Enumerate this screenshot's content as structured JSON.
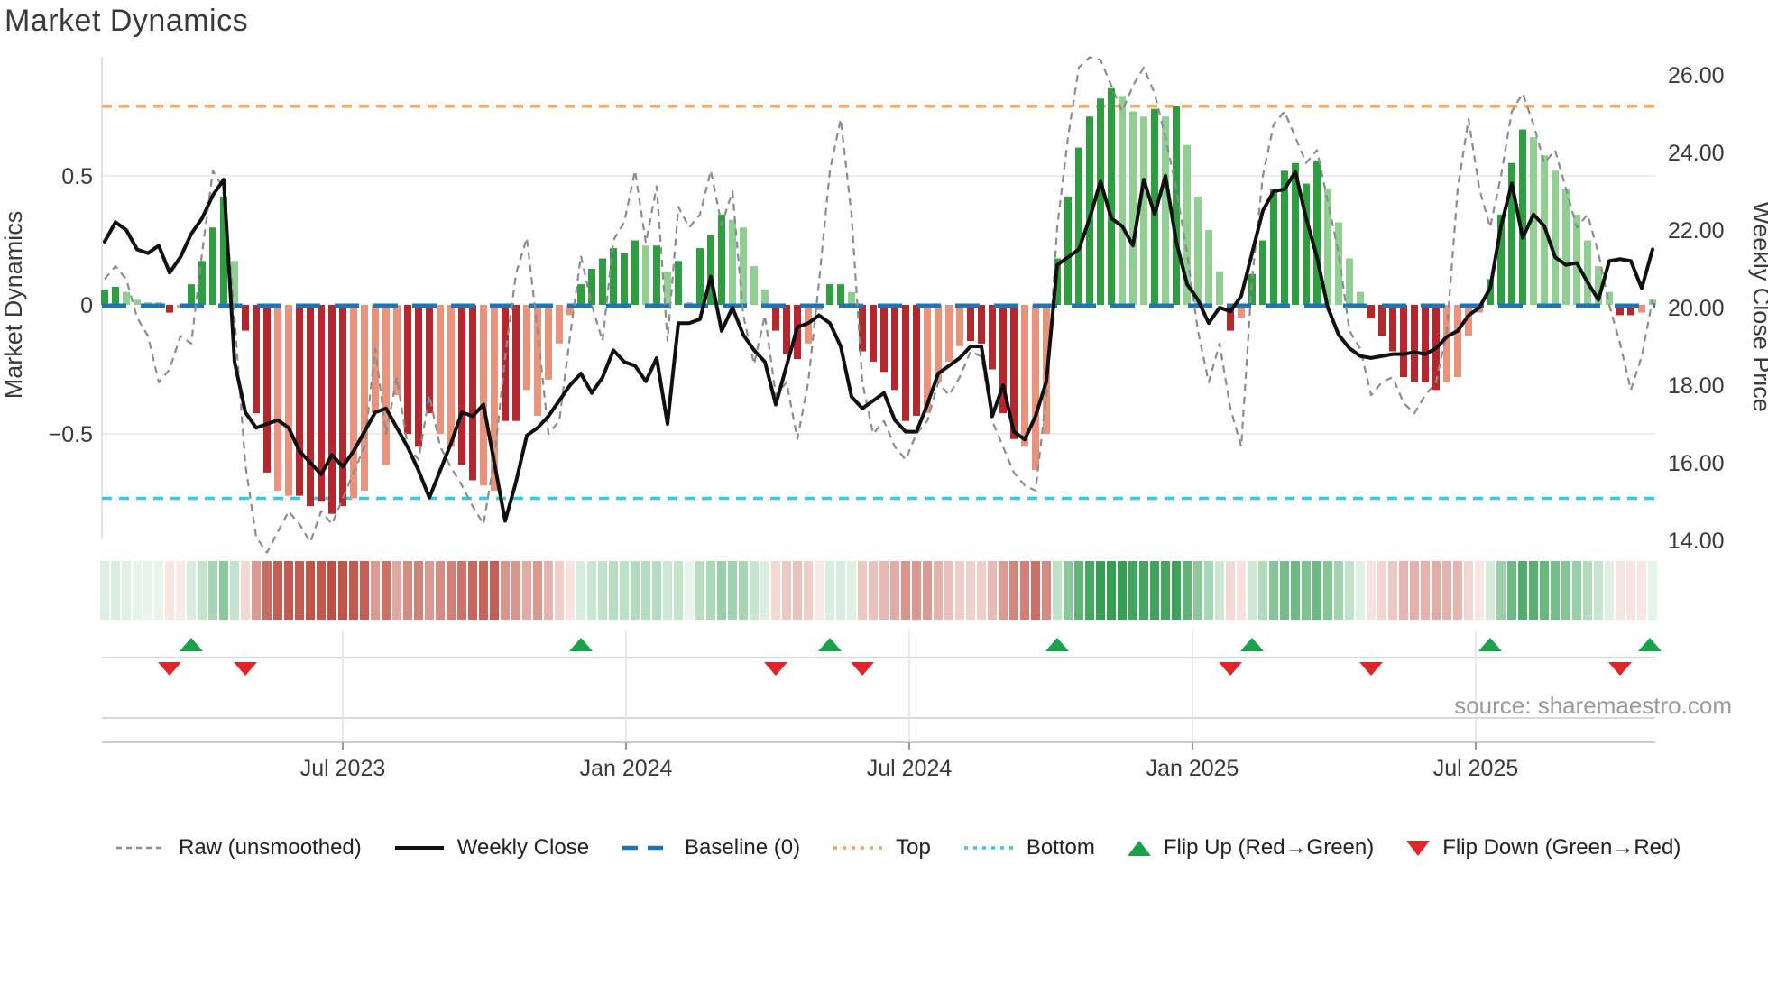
{
  "title": "Market Dynamics",
  "source_text": "source: sharemaestro.com",
  "left_axis": {
    "title": "Market Dynamics",
    "tick_values": [
      0.5,
      0,
      -0.5
    ],
    "tick_labels": [
      "0.5",
      "0",
      "−0.5"
    ]
  },
  "right_axis": {
    "title": "Weekly Close Price",
    "tick_values": [
      26,
      24,
      22,
      20,
      18,
      16,
      14
    ],
    "tick_labels": [
      "26.00",
      "24.00",
      "22.00",
      "20.00",
      "18.00",
      "16.00",
      "14.00"
    ]
  },
  "x_axis": {
    "tick_labels": [
      "Jul 2023",
      "Jan 2024",
      "Jul 2024",
      "Jan 2025",
      "Jul 2025"
    ],
    "tick_x": [
      380,
      694,
      1008,
      1322,
      1636
    ]
  },
  "legend": {
    "items": [
      {
        "type": "dash-gray",
        "label": "Raw (unsmoothed)"
      },
      {
        "type": "solid-black",
        "label": "Weekly Close"
      },
      {
        "type": "dash-blue",
        "label": "Baseline (0)"
      },
      {
        "type": "dot-orange",
        "label": "Top"
      },
      {
        "type": "dot-cyan",
        "label": "Bottom"
      },
      {
        "type": "tri-up",
        "label": "Flip Up (Red→Green)"
      },
      {
        "type": "tri-down",
        "label": "Flip Down (Green→Red)"
      }
    ]
  },
  "colors": {
    "bar_green_dark": "#2f9e41",
    "bar_green_light": "#90ce92",
    "bar_red_dark": "#b3282d",
    "bar_red_light": "#e8947c",
    "close_line": "#101010",
    "raw_line": "#8c8c8c",
    "baseline": "#2273b5",
    "top_line": "#f5a463",
    "bottom_line": "#3fc6e3",
    "flip_up": "#18a24b",
    "flip_down": "#e02427",
    "heat_green_max": "#35a053",
    "heat_green_min": "#e9f6ec",
    "heat_red_max": "#bf4f44",
    "heat_red_min": "#fbece9",
    "grid": "#ececec",
    "panel_line": "#cccccc",
    "axis_text": "#3a3a3a"
  },
  "chart_data": {
    "type": "combo: oscillator bars + heatmap + dual-axis lines",
    "n_weeks": 144,
    "left_axis_range": [
      -0.93,
      0.96
    ],
    "right_axis_range": [
      14,
      26.4
    ],
    "baseline": 0,
    "top_threshold": 0.77,
    "bottom_threshold": -0.75,
    "grid": "horizontal at ±0.5 only",
    "legend_position": "bottom row",
    "oscillator": {
      "values": [
        0.06,
        0.07,
        0.05,
        0.02,
        0.01,
        0.01,
        -0.03,
        -0.01,
        0.08,
        0.17,
        0.3,
        0.42,
        0.17,
        -0.1,
        -0.42,
        -0.65,
        -0.72,
        -0.74,
        -0.74,
        -0.78,
        -0.76,
        -0.81,
        -0.78,
        -0.75,
        -0.72,
        -0.42,
        -0.62,
        -0.35,
        -0.5,
        -0.55,
        -0.42,
        -0.5,
        -0.55,
        -0.62,
        -0.68,
        -0.7,
        -0.72,
        -0.45,
        -0.45,
        -0.33,
        -0.43,
        -0.29,
        -0.15,
        -0.04,
        0.08,
        0.14,
        0.18,
        0.22,
        0.2,
        0.25,
        0.23,
        0.23,
        0.13,
        0.17,
        0.01,
        0.22,
        0.27,
        0.35,
        0.33,
        0.3,
        0.15,
        0.06,
        -0.1,
        -0.19,
        -0.21,
        -0.15,
        -0.02,
        0.08,
        0.08,
        0.05,
        -0.18,
        -0.22,
        -0.26,
        -0.33,
        -0.45,
        -0.43,
        -0.42,
        -0.3,
        -0.22,
        -0.16,
        -0.14,
        -0.15,
        -0.25,
        -0.42,
        -0.52,
        -0.55,
        -0.64,
        -0.5,
        0.18,
        0.42,
        0.61,
        0.73,
        0.8,
        0.84,
        0.81,
        0.75,
        0.73,
        0.76,
        0.73,
        0.77,
        0.62,
        0.42,
        0.29,
        0.13,
        -0.1,
        -0.05,
        0.12,
        0.25,
        0.45,
        0.52,
        0.55,
        0.47,
        0.56,
        0.45,
        0.32,
        0.18,
        0.05,
        -0.05,
        -0.12,
        -0.18,
        -0.28,
        -0.3,
        -0.3,
        -0.33,
        -0.3,
        -0.28,
        -0.12,
        -0.03,
        0.1,
        0.35,
        0.55,
        0.68,
        0.65,
        0.58,
        0.52,
        0.45,
        0.35,
        0.25,
        0.15,
        0.05,
        -0.04,
        -0.04,
        -0.03,
        0.02
      ],
      "shades": [
        "d",
        "d",
        "l",
        "l",
        "l",
        "l",
        "d",
        "l",
        "d",
        "d",
        "d",
        "d",
        "l",
        "d",
        "d",
        "d",
        "l",
        "l",
        "d",
        "d",
        "d",
        "d",
        "d",
        "l",
        "l",
        "l",
        "l",
        "l",
        "d",
        "d",
        "d",
        "l",
        "l",
        "d",
        "d",
        "l",
        "l",
        "d",
        "d",
        "l",
        "l",
        "l",
        "l",
        "l",
        "d",
        "d",
        "d",
        "d",
        "d",
        "d",
        "l",
        "d",
        "l",
        "d",
        "l",
        "d",
        "d",
        "d",
        "l",
        "l",
        "l",
        "l",
        "d",
        "d",
        "d",
        "l",
        "l",
        "d",
        "d",
        "l",
        "d",
        "d",
        "d",
        "d",
        "d",
        "d",
        "l",
        "l",
        "l",
        "l",
        "d",
        "d",
        "d",
        "d",
        "d",
        "l",
        "l",
        "l",
        "d",
        "d",
        "d",
        "d",
        "d",
        "d",
        "l",
        "l",
        "l",
        "d",
        "l",
        "d",
        "l",
        "l",
        "l",
        "l",
        "d",
        "l",
        "d",
        "d",
        "d",
        "d",
        "d",
        "d",
        "d",
        "l",
        "l",
        "l",
        "l",
        "d",
        "d",
        "d",
        "d",
        "d",
        "d",
        "d",
        "l",
        "l",
        "l",
        "l",
        "d",
        "d",
        "d",
        "d",
        "l",
        "l",
        "l",
        "l",
        "l",
        "l",
        "l",
        "l",
        "d",
        "d",
        "l",
        "l"
      ]
    },
    "weekly_close": [
      21.7,
      22.2,
      22.0,
      21.5,
      21.4,
      21.6,
      20.9,
      21.3,
      21.9,
      22.3,
      22.9,
      23.3,
      18.6,
      17.3,
      16.9,
      17.0,
      17.1,
      16.9,
      16.3,
      16.0,
      15.7,
      16.2,
      15.9,
      16.3,
      16.8,
      17.3,
      17.4,
      16.9,
      16.4,
      15.8,
      15.1,
      15.8,
      16.5,
      17.3,
      17.2,
      17.5,
      16.0,
      14.5,
      15.5,
      16.7,
      16.9,
      17.2,
      17.6,
      18.0,
      18.3,
      17.8,
      18.2,
      18.9,
      18.6,
      18.5,
      18.1,
      18.7,
      17.0,
      19.6,
      19.6,
      19.7,
      20.8,
      19.4,
      20.0,
      19.3,
      18.9,
      18.6,
      17.5,
      18.5,
      19.5,
      19.6,
      19.8,
      19.6,
      19.0,
      17.7,
      17.4,
      17.6,
      17.8,
      17.1,
      16.8,
      16.8,
      17.5,
      18.3,
      18.5,
      18.7,
      19.0,
      19.0,
      17.2,
      18.0,
      16.8,
      16.6,
      17.2,
      18.1,
      21.1,
      21.3,
      21.5,
      22.3,
      23.25,
      22.3,
      22.1,
      21.6,
      23.3,
      22.4,
      23.4,
      21.7,
      20.6,
      20.2,
      19.6,
      20.0,
      19.9,
      20.3,
      21.4,
      22.5,
      23.0,
      23.05,
      23.5,
      22.3,
      21.3,
      20.0,
      19.3,
      18.95,
      18.75,
      18.7,
      18.75,
      18.8,
      18.8,
      18.85,
      18.8,
      18.95,
      19.25,
      19.4,
      19.8,
      20.0,
      20.5,
      22.1,
      23.2,
      21.8,
      22.4,
      22.1,
      21.3,
      21.1,
      21.15,
      20.65,
      20.2,
      21.2,
      21.25,
      21.2,
      20.5,
      21.5
    ],
    "raw": [
      0.1,
      0.15,
      0.1,
      -0.05,
      -0.12,
      -0.3,
      -0.25,
      -0.12,
      -0.15,
      0.2,
      0.52,
      0.45,
      -0.05,
      -0.62,
      -0.9,
      -0.96,
      -0.88,
      -0.8,
      -0.85,
      -0.92,
      -0.8,
      -0.85,
      -0.75,
      -0.65,
      -0.55,
      -0.17,
      -0.5,
      -0.28,
      -0.55,
      -0.6,
      -0.35,
      -0.55,
      -0.63,
      -0.7,
      -0.78,
      -0.85,
      -0.6,
      -0.2,
      0.12,
      0.26,
      -0.1,
      -0.5,
      -0.45,
      -0.12,
      0.19,
      0.0,
      -0.14,
      0.25,
      0.32,
      0.52,
      0.24,
      0.46,
      -0.14,
      0.38,
      0.3,
      0.35,
      0.52,
      0.31,
      0.44,
      -0.04,
      -0.23,
      -0.04,
      -0.35,
      -0.3,
      -0.52,
      -0.3,
      0.09,
      0.52,
      0.72,
      0.35,
      -0.3,
      -0.5,
      -0.45,
      -0.55,
      -0.6,
      -0.5,
      -0.45,
      -0.3,
      -0.35,
      -0.28,
      -0.18,
      -0.2,
      -0.45,
      -0.55,
      -0.65,
      -0.7,
      -0.72,
      -0.35,
      0.3,
      0.65,
      0.92,
      0.96,
      0.95,
      0.85,
      0.75,
      0.85,
      0.92,
      0.82,
      0.65,
      0.45,
      0.2,
      -0.1,
      -0.3,
      -0.15,
      -0.4,
      -0.55,
      0.1,
      0.5,
      0.7,
      0.75,
      0.65,
      0.55,
      0.6,
      0.4,
      0.2,
      -0.1,
      -0.17,
      -0.35,
      -0.3,
      -0.28,
      -0.38,
      -0.42,
      -0.35,
      -0.3,
      -0.1,
      0.45,
      0.72,
      0.45,
      0.3,
      0.5,
      0.75,
      0.82,
      0.7,
      0.55,
      0.6,
      0.45,
      0.3,
      0.35,
      0.2,
      0.0,
      -0.15,
      -0.33,
      -0.2,
      0.02
    ],
    "flip_up_weeks": [
      8,
      44,
      67,
      88,
      106,
      128,
      143
    ],
    "flip_down_weeks": [
      6,
      13,
      62,
      70,
      104,
      117,
      140
    ]
  }
}
